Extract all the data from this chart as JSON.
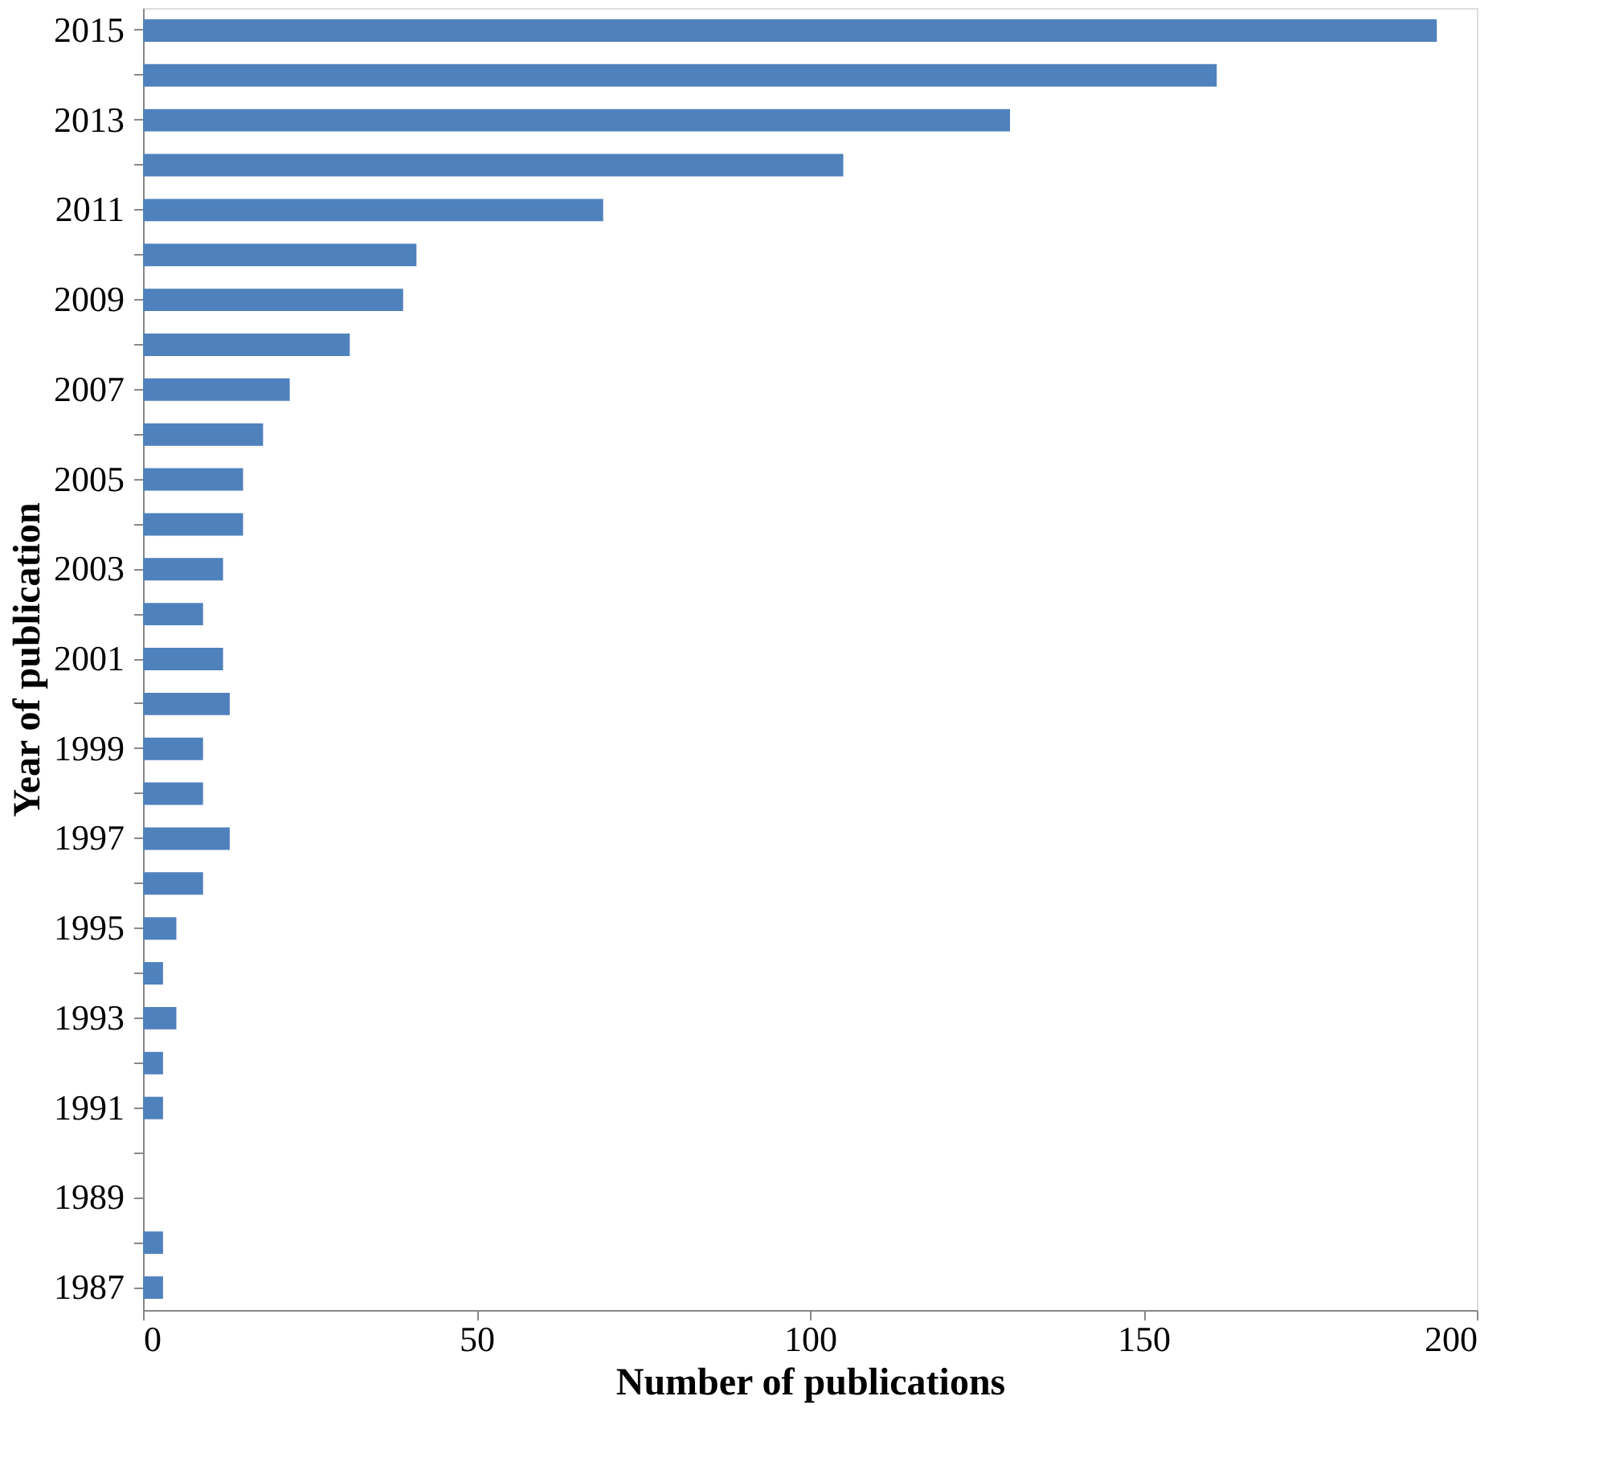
{
  "chart_data": {
    "type": "bar",
    "orientation": "horizontal",
    "xlabel": "Number of publications",
    "ylabel": "Year of publication",
    "categories": [
      "2015",
      null,
      "2013",
      null,
      "2011",
      null,
      "2009",
      null,
      "2007",
      null,
      "2005",
      null,
      "2003",
      null,
      "2001",
      null,
      "1999",
      null,
      "1997",
      null,
      "1995",
      null,
      "1993",
      null,
      "1991",
      null,
      "1989",
      null,
      "1987"
    ],
    "series": [
      {
        "color": "#4f81bd",
        "values": [
          194,
          161,
          130,
          105,
          69,
          41,
          39,
          31,
          22,
          18,
          15,
          15,
          12,
          9,
          12,
          13,
          9,
          9,
          13,
          9,
          5,
          3,
          5,
          3,
          3,
          0,
          0,
          3,
          3
        ]
      }
    ],
    "xlim": [
      0,
      200
    ],
    "xticks": [
      0,
      50,
      100,
      150,
      200
    ],
    "grid": false,
    "legend": false
  }
}
